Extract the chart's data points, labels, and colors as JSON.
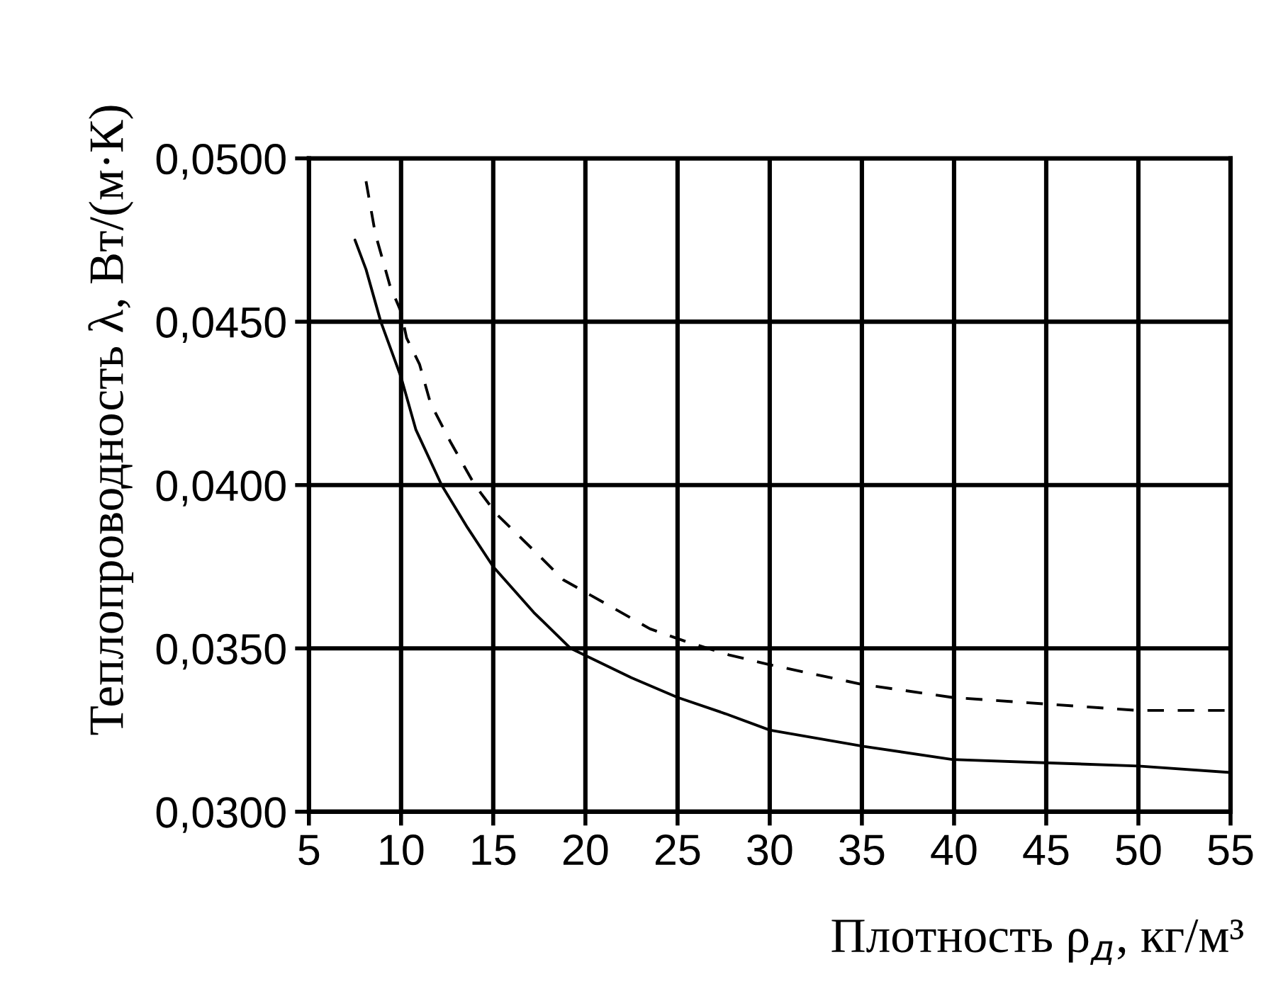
{
  "chart_data": {
    "type": "line",
    "xlabel": "Плотность ρ$_{д}$, кг/м³",
    "ylabel": "Теплопроводность λ, Вт/(м·К)",
    "xlim": [
      5,
      55
    ],
    "xticks": [
      5,
      10,
      15,
      20,
      25,
      30,
      35,
      40,
      45,
      50,
      55
    ],
    "ylim": [
      0.03,
      0.05
    ],
    "yticks": [
      {
        "value": 0.03,
        "label": "0,0300"
      },
      {
        "value": 0.035,
        "label": "0,0350"
      },
      {
        "value": 0.04,
        "label": "0,0400"
      },
      {
        "value": 0.045,
        "label": "0,0450"
      },
      {
        "value": 0.05,
        "label": "0,0500"
      }
    ],
    "grid": true,
    "marker": "none",
    "series": [
      {
        "color": "#000000",
        "line_style": "solid",
        "x": [
          7.5,
          8.1,
          8.9,
          10.0,
          10.8,
          12.2,
          13.6,
          15.0,
          17.2,
          19.2,
          22.5,
          25.0,
          27.6,
          30.0,
          35.1,
          39.9,
          44.9,
          50.0,
          55
        ],
        "values": [
          0.0475,
          0.0466,
          0.045,
          0.0433,
          0.0417,
          0.04,
          0.0387,
          0.0375,
          0.0361,
          0.035,
          0.0341,
          0.0335,
          0.033,
          0.0325,
          0.032,
          0.0316,
          0.0315,
          0.0314,
          0.0312
        ]
      },
      {
        "color": "#000000",
        "line_style": "dashed",
        "x": [
          8.1,
          8.6,
          9.4,
          10.0,
          10.3,
          11.0,
          11.6,
          12.7,
          14.0,
          15.2,
          17.2,
          18.8,
          21.0,
          23.5,
          25.5,
          27.8,
          30.0,
          35.0,
          39.9,
          44.9,
          50.0,
          55
        ],
        "values": [
          0.0493,
          0.0477,
          0.0461,
          0.0453,
          0.0445,
          0.0437,
          0.0425,
          0.0413,
          0.04,
          0.0391,
          0.038,
          0.0371,
          0.0364,
          0.0356,
          0.0352,
          0.0348,
          0.0345,
          0.0339,
          0.0335,
          0.0333,
          0.0331,
          0.0331
        ]
      }
    ]
  }
}
